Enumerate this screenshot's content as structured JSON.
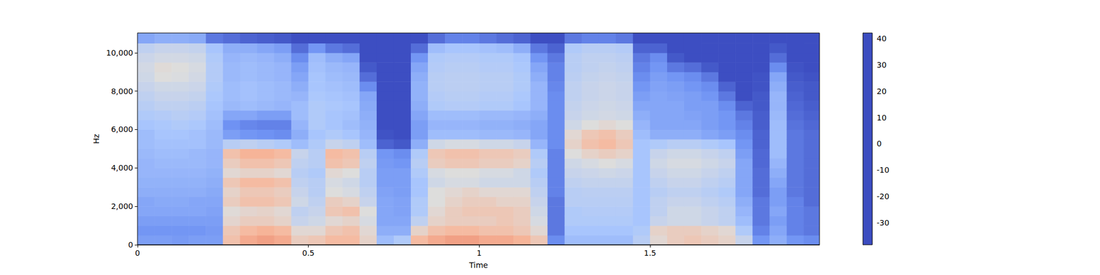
{
  "chart_data": {
    "type": "heatmap",
    "x_label": "Time",
    "y_label": "Hz",
    "xlim": [
      0,
      1.996
    ],
    "xticks": [
      0,
      0.5,
      1,
      1.5
    ],
    "ylim": [
      0,
      11025
    ],
    "yticks": [
      0,
      2000,
      4000,
      6000,
      8000,
      10000
    ],
    "time_bins": [
      0,
      0.05,
      0.1,
      0.15,
      0.2,
      0.25,
      0.3,
      0.35,
      0.4,
      0.45,
      0.5,
      0.55,
      0.6,
      0.65,
      0.7,
      0.75,
      0.8,
      0.85,
      0.9,
      0.95,
      1.0,
      1.05,
      1.1,
      1.15,
      1.2,
      1.25,
      1.3,
      1.35,
      1.4,
      1.45,
      1.5,
      1.55,
      1.6,
      1.65,
      1.7,
      1.75,
      1.8,
      1.85,
      1.9,
      1.95,
      1.996
    ],
    "freq_bins": [
      0,
      500,
      1000,
      1500,
      2000,
      2500,
      3000,
      3500,
      4000,
      4500,
      5000,
      5500,
      6000,
      6500,
      7000,
      7500,
      8000,
      8500,
      9000,
      9500,
      10000,
      10500,
      11025
    ],
    "cells": [
      [
        -22,
        -24,
        -22,
        -20,
        -20,
        -18,
        -17,
        -16,
        -16,
        -15,
        -14,
        -14,
        -12,
        -10,
        -8,
        -6,
        -4,
        -2,
        -1,
        -3,
        -6,
        -20
      ],
      [
        -22,
        -24,
        -22,
        -20,
        -19,
        -18,
        -17,
        -16,
        -15,
        -14,
        -13,
        -12,
        -11,
        -9,
        -6,
        -4,
        -2,
        2,
        3,
        -1,
        -4,
        -18
      ],
      [
        -23,
        -24,
        -22,
        -20,
        -19,
        -18,
        -17,
        -16,
        -15,
        -14,
        -13,
        -12,
        -10,
        -8,
        -6,
        -4,
        -2,
        1,
        2,
        -1,
        -4,
        -18
      ],
      [
        -22,
        -24,
        -22,
        -20,
        -20,
        -18,
        -17,
        -16,
        -15,
        -15,
        -13,
        -13,
        -11,
        -9,
        -7,
        -5,
        -3,
        -1,
        0,
        -2,
        -5,
        -19
      ],
      [
        -22,
        -23,
        -22,
        -21,
        -20,
        -19,
        -18,
        -17,
        -16,
        -16,
        -15,
        -15,
        -14,
        -13,
        -12,
        -11,
        -10,
        -9,
        -9,
        -10,
        -12,
        -30
      ],
      [
        12,
        10,
        5,
        3,
        8,
        6,
        10,
        4,
        8,
        12,
        -8,
        -22,
        -25,
        -20,
        -15,
        -14,
        -14,
        -15,
        -15,
        -16,
        -18,
        -32
      ],
      [
        18,
        14,
        8,
        5,
        12,
        10,
        14,
        6,
        12,
        16,
        -6,
        -24,
        -27,
        -20,
        -14,
        -13,
        -13,
        -14,
        -14,
        -15,
        -18,
        -34
      ],
      [
        20,
        16,
        8,
        6,
        12,
        10,
        14,
        6,
        12,
        16,
        -8,
        -25,
        -28,
        -22,
        -15,
        -14,
        -14,
        -15,
        -15,
        -16,
        -20,
        -35
      ],
      [
        18,
        14,
        6,
        4,
        10,
        8,
        12,
        4,
        10,
        14,
        -10,
        -26,
        -28,
        -22,
        -16,
        -15,
        -15,
        -16,
        -16,
        -18,
        -22,
        -36
      ],
      [
        8,
        4,
        -4,
        -6,
        -2,
        -4,
        -6,
        -8,
        -6,
        -4,
        -14,
        -18,
        -16,
        -14,
        -14,
        -16,
        -18,
        -20,
        -22,
        -26,
        -32,
        -38
      ],
      [
        10,
        4,
        -2,
        -4,
        -6,
        -8,
        -8,
        -10,
        -8,
        -8,
        -10,
        -12,
        -10,
        -10,
        -10,
        -11,
        -12,
        -12,
        -13,
        -14,
        -24,
        -38
      ],
      [
        14,
        10,
        4,
        10,
        8,
        2,
        0,
        4,
        12,
        14,
        -4,
        -10,
        -12,
        -12,
        -11,
        -12,
        -13,
        -14,
        -15,
        -18,
        -30,
        -38
      ],
      [
        14,
        12,
        6,
        12,
        6,
        0,
        -2,
        2,
        10,
        12,
        -6,
        -12,
        -14,
        -13,
        -12,
        -13,
        -14,
        -15,
        -16,
        -20,
        -32,
        -38
      ],
      [
        6,
        4,
        0,
        2,
        -4,
        -6,
        -8,
        -8,
        -6,
        -8,
        -14,
        -16,
        -17,
        -18,
        -19,
        -20,
        -26,
        -32,
        -36,
        -38,
        -38,
        -38
      ],
      [
        -14,
        -18,
        -20,
        -20,
        -20,
        -21,
        -22,
        -22,
        -23,
        -24,
        -34,
        -37,
        -38,
        -38,
        -38,
        -38,
        -38,
        -38,
        -38,
        -38,
        -38,
        -38
      ],
      [
        -10,
        -18,
        -20,
        -21,
        -21,
        -22,
        -22,
        -22,
        -24,
        -26,
        -36,
        -38,
        -38,
        -38,
        -38,
        -38,
        -38,
        -38,
        -38,
        -38,
        -38,
        -38
      ],
      [
        14,
        6,
        -6,
        -10,
        -10,
        -12,
        -12,
        -10,
        -8,
        -10,
        -18,
        -22,
        -22,
        -20,
        -18,
        -17,
        -17,
        -18,
        -20,
        -24,
        -32,
        -38
      ],
      [
        18,
        12,
        6,
        4,
        2,
        2,
        -2,
        0,
        8,
        10,
        -2,
        -14,
        -16,
        -14,
        -10,
        -9,
        -8,
        -8,
        -9,
        -10,
        -14,
        -32
      ],
      [
        20,
        14,
        8,
        8,
        6,
        4,
        0,
        2,
        10,
        12,
        0,
        -14,
        -16,
        -14,
        -9,
        -8,
        -7,
        -7,
        -8,
        -9,
        -12,
        -28
      ],
      [
        20,
        14,
        8,
        10,
        8,
        6,
        0,
        2,
        10,
        12,
        0,
        -14,
        -16,
        -14,
        -9,
        -8,
        -7,
        -7,
        -8,
        -9,
        -12,
        -28
      ],
      [
        18,
        12,
        8,
        10,
        8,
        4,
        -2,
        0,
        8,
        10,
        -2,
        -15,
        -17,
        -15,
        -10,
        -9,
        -8,
        -8,
        -9,
        -10,
        -13,
        -30
      ],
      [
        18,
        12,
        10,
        10,
        6,
        4,
        -2,
        0,
        8,
        10,
        -2,
        -15,
        -17,
        -15,
        -10,
        -9,
        -8,
        -8,
        -9,
        -10,
        -14,
        -32
      ],
      [
        16,
        10,
        8,
        8,
        6,
        4,
        -2,
        -2,
        6,
        8,
        -4,
        -16,
        -18,
        -16,
        -12,
        -11,
        -10,
        -10,
        -11,
        -12,
        -18,
        -34
      ],
      [
        10,
        4,
        0,
        -2,
        -4,
        -6,
        -8,
        -10,
        -8,
        -10,
        -16,
        -20,
        -20,
        -18,
        -16,
        -16,
        -16,
        -18,
        -20,
        -24,
        -30,
        -38
      ],
      [
        -26,
        -30,
        -30,
        -30,
        -30,
        -28,
        -28,
        -28,
        -28,
        -28,
        -26,
        -26,
        -26,
        -26,
        -26,
        -26,
        -27,
        -28,
        -28,
        -30,
        -34,
        -38
      ],
      [
        -14,
        -12,
        -10,
        -10,
        -8,
        -8,
        -6,
        -4,
        -2,
        2,
        6,
        4,
        -2,
        -4,
        -5,
        -6,
        -6,
        -7,
        -8,
        -8,
        -10,
        -30
      ],
      [
        -14,
        -12,
        -10,
        -9,
        -8,
        -7,
        -5,
        -3,
        0,
        6,
        12,
        10,
        2,
        -2,
        -3,
        -4,
        -4,
        -5,
        -6,
        -6,
        -8,
        -28
      ],
      [
        -14,
        -12,
        -10,
        -9,
        -8,
        -7,
        -5,
        -2,
        2,
        8,
        14,
        12,
        4,
        -1,
        -2,
        -3,
        -3,
        -4,
        -5,
        -6,
        -8,
        -28
      ],
      [
        -14,
        -12,
        -10,
        -9,
        -8,
        -7,
        -5,
        -3,
        0,
        6,
        10,
        8,
        2,
        -2,
        -3,
        -4,
        -4,
        -5,
        -6,
        -7,
        -9,
        -30
      ],
      [
        -8,
        -10,
        -12,
        -12,
        -12,
        -12,
        -12,
        -12,
        -12,
        -12,
        -12,
        -14,
        -16,
        -18,
        -20,
        -22,
        -24,
        -26,
        -28,
        -30,
        -34,
        -38
      ],
      [
        4,
        6,
        -4,
        -6,
        -6,
        -8,
        -6,
        -4,
        -2,
        -4,
        -10,
        -18,
        -20,
        -20,
        -20,
        -20,
        -21,
        -22,
        -24,
        -26,
        -34,
        -38
      ],
      [
        8,
        8,
        -2,
        -2,
        -4,
        -6,
        -4,
        -2,
        0,
        -2,
        -8,
        -18,
        -20,
        -20,
        -20,
        -21,
        -22,
        -24,
        -30,
        -36,
        -38,
        -38
      ],
      [
        10,
        8,
        -2,
        -2,
        -4,
        -6,
        -4,
        -2,
        0,
        -2,
        -8,
        -18,
        -20,
        -21,
        -22,
        -22,
        -24,
        -26,
        -32,
        -38,
        -38,
        -38
      ],
      [
        8,
        6,
        -4,
        -4,
        -6,
        -8,
        -6,
        -4,
        -2,
        -4,
        -10,
        -20,
        -22,
        -22,
        -22,
        -24,
        -26,
        -30,
        -36,
        -38,
        -38,
        -38
      ],
      [
        6,
        4,
        -6,
        -6,
        -8,
        -10,
        -8,
        -6,
        -4,
        -6,
        -12,
        -22,
        -24,
        -24,
        -26,
        -30,
        -34,
        -38,
        -38,
        -38,
        -38,
        -38
      ],
      [
        -4,
        -10,
        -14,
        -16,
        -18,
        -20,
        -20,
        -20,
        -20,
        -22,
        -24,
        -26,
        -28,
        -30,
        -34,
        -38,
        -38,
        -38,
        -38,
        -38,
        -38,
        -38
      ],
      [
        -24,
        -28,
        -30,
        -30,
        -30,
        -32,
        -32,
        -32,
        -33,
        -33,
        -34,
        -34,
        -35,
        -35,
        -36,
        -36,
        -37,
        -37,
        -38,
        -38,
        -38,
        -38
      ],
      [
        -18,
        -20,
        -22,
        -20,
        -22,
        -22,
        -20,
        -18,
        -16,
        -14,
        -14,
        -14,
        -14,
        -15,
        -16,
        -16,
        -18,
        -20,
        -26,
        -32,
        -36,
        -38
      ],
      [
        -24,
        -28,
        -28,
        -28,
        -28,
        -30,
        -30,
        -30,
        -30,
        -30,
        -30,
        -30,
        -31,
        -32,
        -33,
        -34,
        -35,
        -36,
        -37,
        -38,
        -38,
        -38
      ],
      [
        -26,
        -30,
        -30,
        -30,
        -32,
        -32,
        -32,
        -32,
        -32,
        -32,
        -32,
        -32,
        -33,
        -34,
        -35,
        -36,
        -36,
        -37,
        -38,
        -38,
        -38,
        -38
      ]
    ],
    "colorbar": {
      "range": [
        -38.4,
        42.1
      ],
      "ticks": [
        -30,
        -20,
        -10,
        0,
        10,
        20,
        30,
        40
      ]
    }
  }
}
